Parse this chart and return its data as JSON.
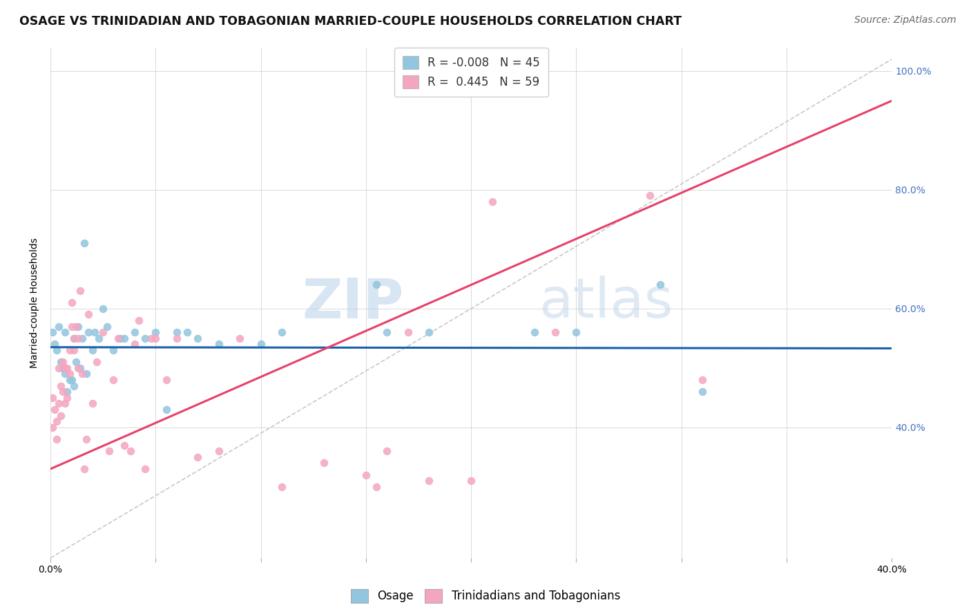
{
  "title": "OSAGE VS TRINIDADIAN AND TOBAGONIAN MARRIED-COUPLE HOUSEHOLDS CORRELATION CHART",
  "source": "Source: ZipAtlas.com",
  "ylabel": "Married-couple Households",
  "xlim": [
    0.0,
    0.4
  ],
  "ylim": [
    0.18,
    1.04
  ],
  "R_osage": -0.008,
  "N_osage": 45,
  "R_trini": 0.445,
  "N_trini": 59,
  "osage_color": "#92c5de",
  "trini_color": "#f4a6c0",
  "trend_osage_color": "#1a5fa8",
  "trend_trini_color": "#e8406a",
  "diagonal_color": "#c8c8c8",
  "watermark_color": "#b8d4e8",
  "legend_label_osage": "Osage",
  "legend_label_trini": "Trinidadians and Tobagonians",
  "osage_x": [
    0.001,
    0.002,
    0.003,
    0.004,
    0.005,
    0.006,
    0.007,
    0.007,
    0.008,
    0.009,
    0.01,
    0.011,
    0.011,
    0.012,
    0.013,
    0.014,
    0.015,
    0.016,
    0.017,
    0.018,
    0.02,
    0.021,
    0.023,
    0.025,
    0.027,
    0.03,
    0.033,
    0.035,
    0.04,
    0.045,
    0.05,
    0.055,
    0.06,
    0.065,
    0.07,
    0.08,
    0.1,
    0.11,
    0.155,
    0.16,
    0.18,
    0.23,
    0.25,
    0.29,
    0.31
  ],
  "osage_y": [
    0.56,
    0.54,
    0.53,
    0.57,
    0.51,
    0.5,
    0.49,
    0.56,
    0.46,
    0.48,
    0.48,
    0.47,
    0.55,
    0.51,
    0.57,
    0.5,
    0.55,
    0.71,
    0.49,
    0.56,
    0.53,
    0.56,
    0.55,
    0.6,
    0.57,
    0.53,
    0.55,
    0.55,
    0.56,
    0.55,
    0.56,
    0.43,
    0.56,
    0.56,
    0.55,
    0.54,
    0.54,
    0.56,
    0.64,
    0.56,
    0.56,
    0.56,
    0.56,
    0.64,
    0.46
  ],
  "trini_x": [
    0.001,
    0.001,
    0.002,
    0.003,
    0.003,
    0.004,
    0.004,
    0.005,
    0.005,
    0.006,
    0.006,
    0.007,
    0.007,
    0.008,
    0.008,
    0.009,
    0.009,
    0.01,
    0.01,
    0.011,
    0.011,
    0.012,
    0.013,
    0.013,
    0.014,
    0.015,
    0.016,
    0.017,
    0.018,
    0.02,
    0.022,
    0.025,
    0.028,
    0.03,
    0.032,
    0.035,
    0.038,
    0.04,
    0.042,
    0.045,
    0.048,
    0.05,
    0.055,
    0.06,
    0.07,
    0.08,
    0.09,
    0.11,
    0.13,
    0.15,
    0.155,
    0.16,
    0.17,
    0.18,
    0.2,
    0.21,
    0.24,
    0.285,
    0.31
  ],
  "trini_y": [
    0.45,
    0.4,
    0.43,
    0.41,
    0.38,
    0.44,
    0.5,
    0.42,
    0.47,
    0.46,
    0.51,
    0.44,
    0.5,
    0.45,
    0.5,
    0.49,
    0.53,
    0.57,
    0.61,
    0.55,
    0.53,
    0.57,
    0.55,
    0.5,
    0.63,
    0.49,
    0.33,
    0.38,
    0.59,
    0.44,
    0.51,
    0.56,
    0.36,
    0.48,
    0.55,
    0.37,
    0.36,
    0.54,
    0.58,
    0.33,
    0.55,
    0.55,
    0.48,
    0.55,
    0.35,
    0.36,
    0.55,
    0.3,
    0.34,
    0.32,
    0.3,
    0.36,
    0.56,
    0.31,
    0.31,
    0.78,
    0.56,
    0.79,
    0.48
  ],
  "background_color": "#ffffff",
  "grid_color": "#d0d0d0",
  "title_fontsize": 12.5,
  "axis_label_fontsize": 10,
  "tick_fontsize": 10,
  "legend_fontsize": 12,
  "source_fontsize": 10,
  "marker_size": 55,
  "watermark_text": "ZIPAtlas",
  "right_ytick_color": "#4472c4",
  "trend_osage_intercept": 0.535,
  "trend_osage_slope": -0.005,
  "trend_trini_intercept": 0.33,
  "trend_trini_slope": 1.55
}
